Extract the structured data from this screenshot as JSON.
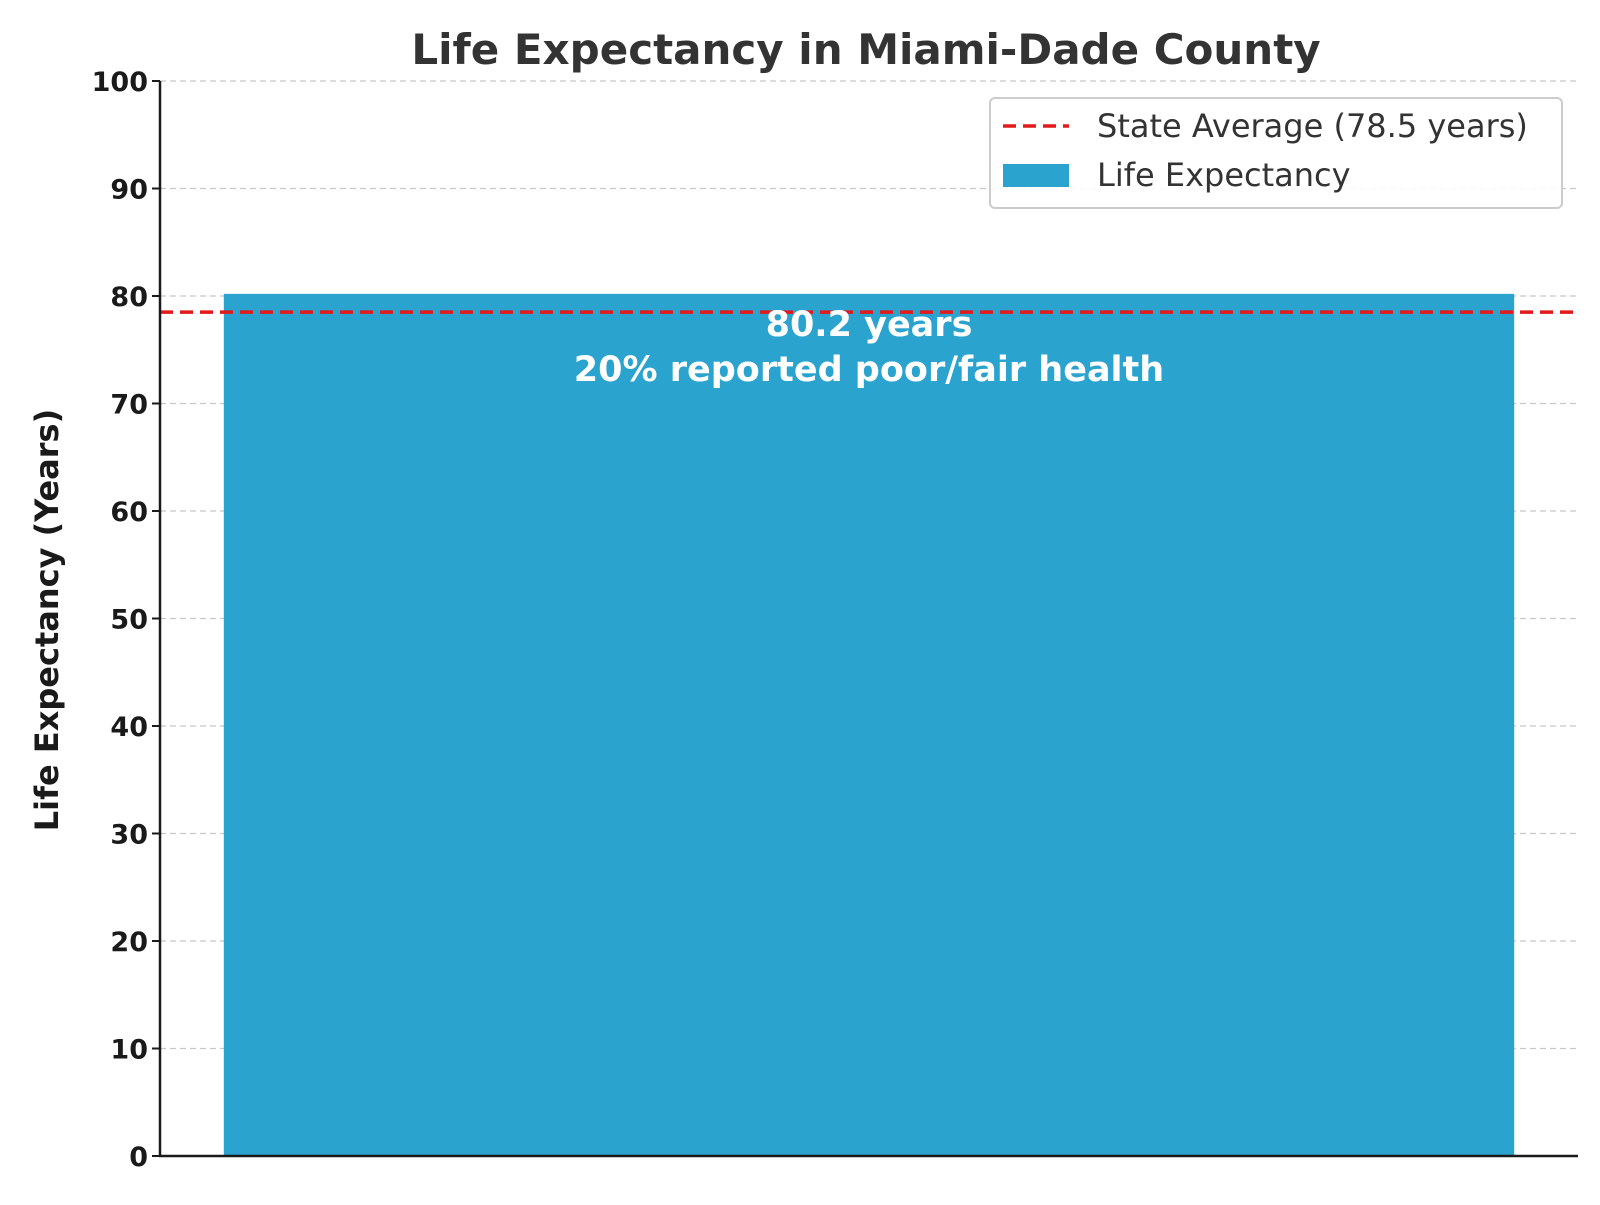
{
  "chart_data": {
    "type": "bar",
    "title": "Life Expectancy in Miami-Dade County",
    "xlabel": "",
    "ylabel": "Life Expectancy (Years)",
    "ylim": [
      0,
      100
    ],
    "yticks": [
      0,
      10,
      20,
      30,
      40,
      50,
      60,
      70,
      80,
      90,
      100
    ],
    "grid": "horizontal dashed",
    "categories": [
      ""
    ],
    "series": [
      {
        "name": "Life Expectancy",
        "values": [
          80.2
        ],
        "color": "#2ba3cf",
        "label_lines": [
          "80.2 years",
          "20% reported poor/fair health"
        ]
      }
    ],
    "reference_line": {
      "name": "State Average (78.5 years)",
      "value": 78.5,
      "color": "#e31a1c",
      "style": "dashed"
    },
    "legend": {
      "placement": "top-right",
      "entries": [
        "State Average (78.5 years)",
        "Life Expectancy"
      ]
    }
  }
}
